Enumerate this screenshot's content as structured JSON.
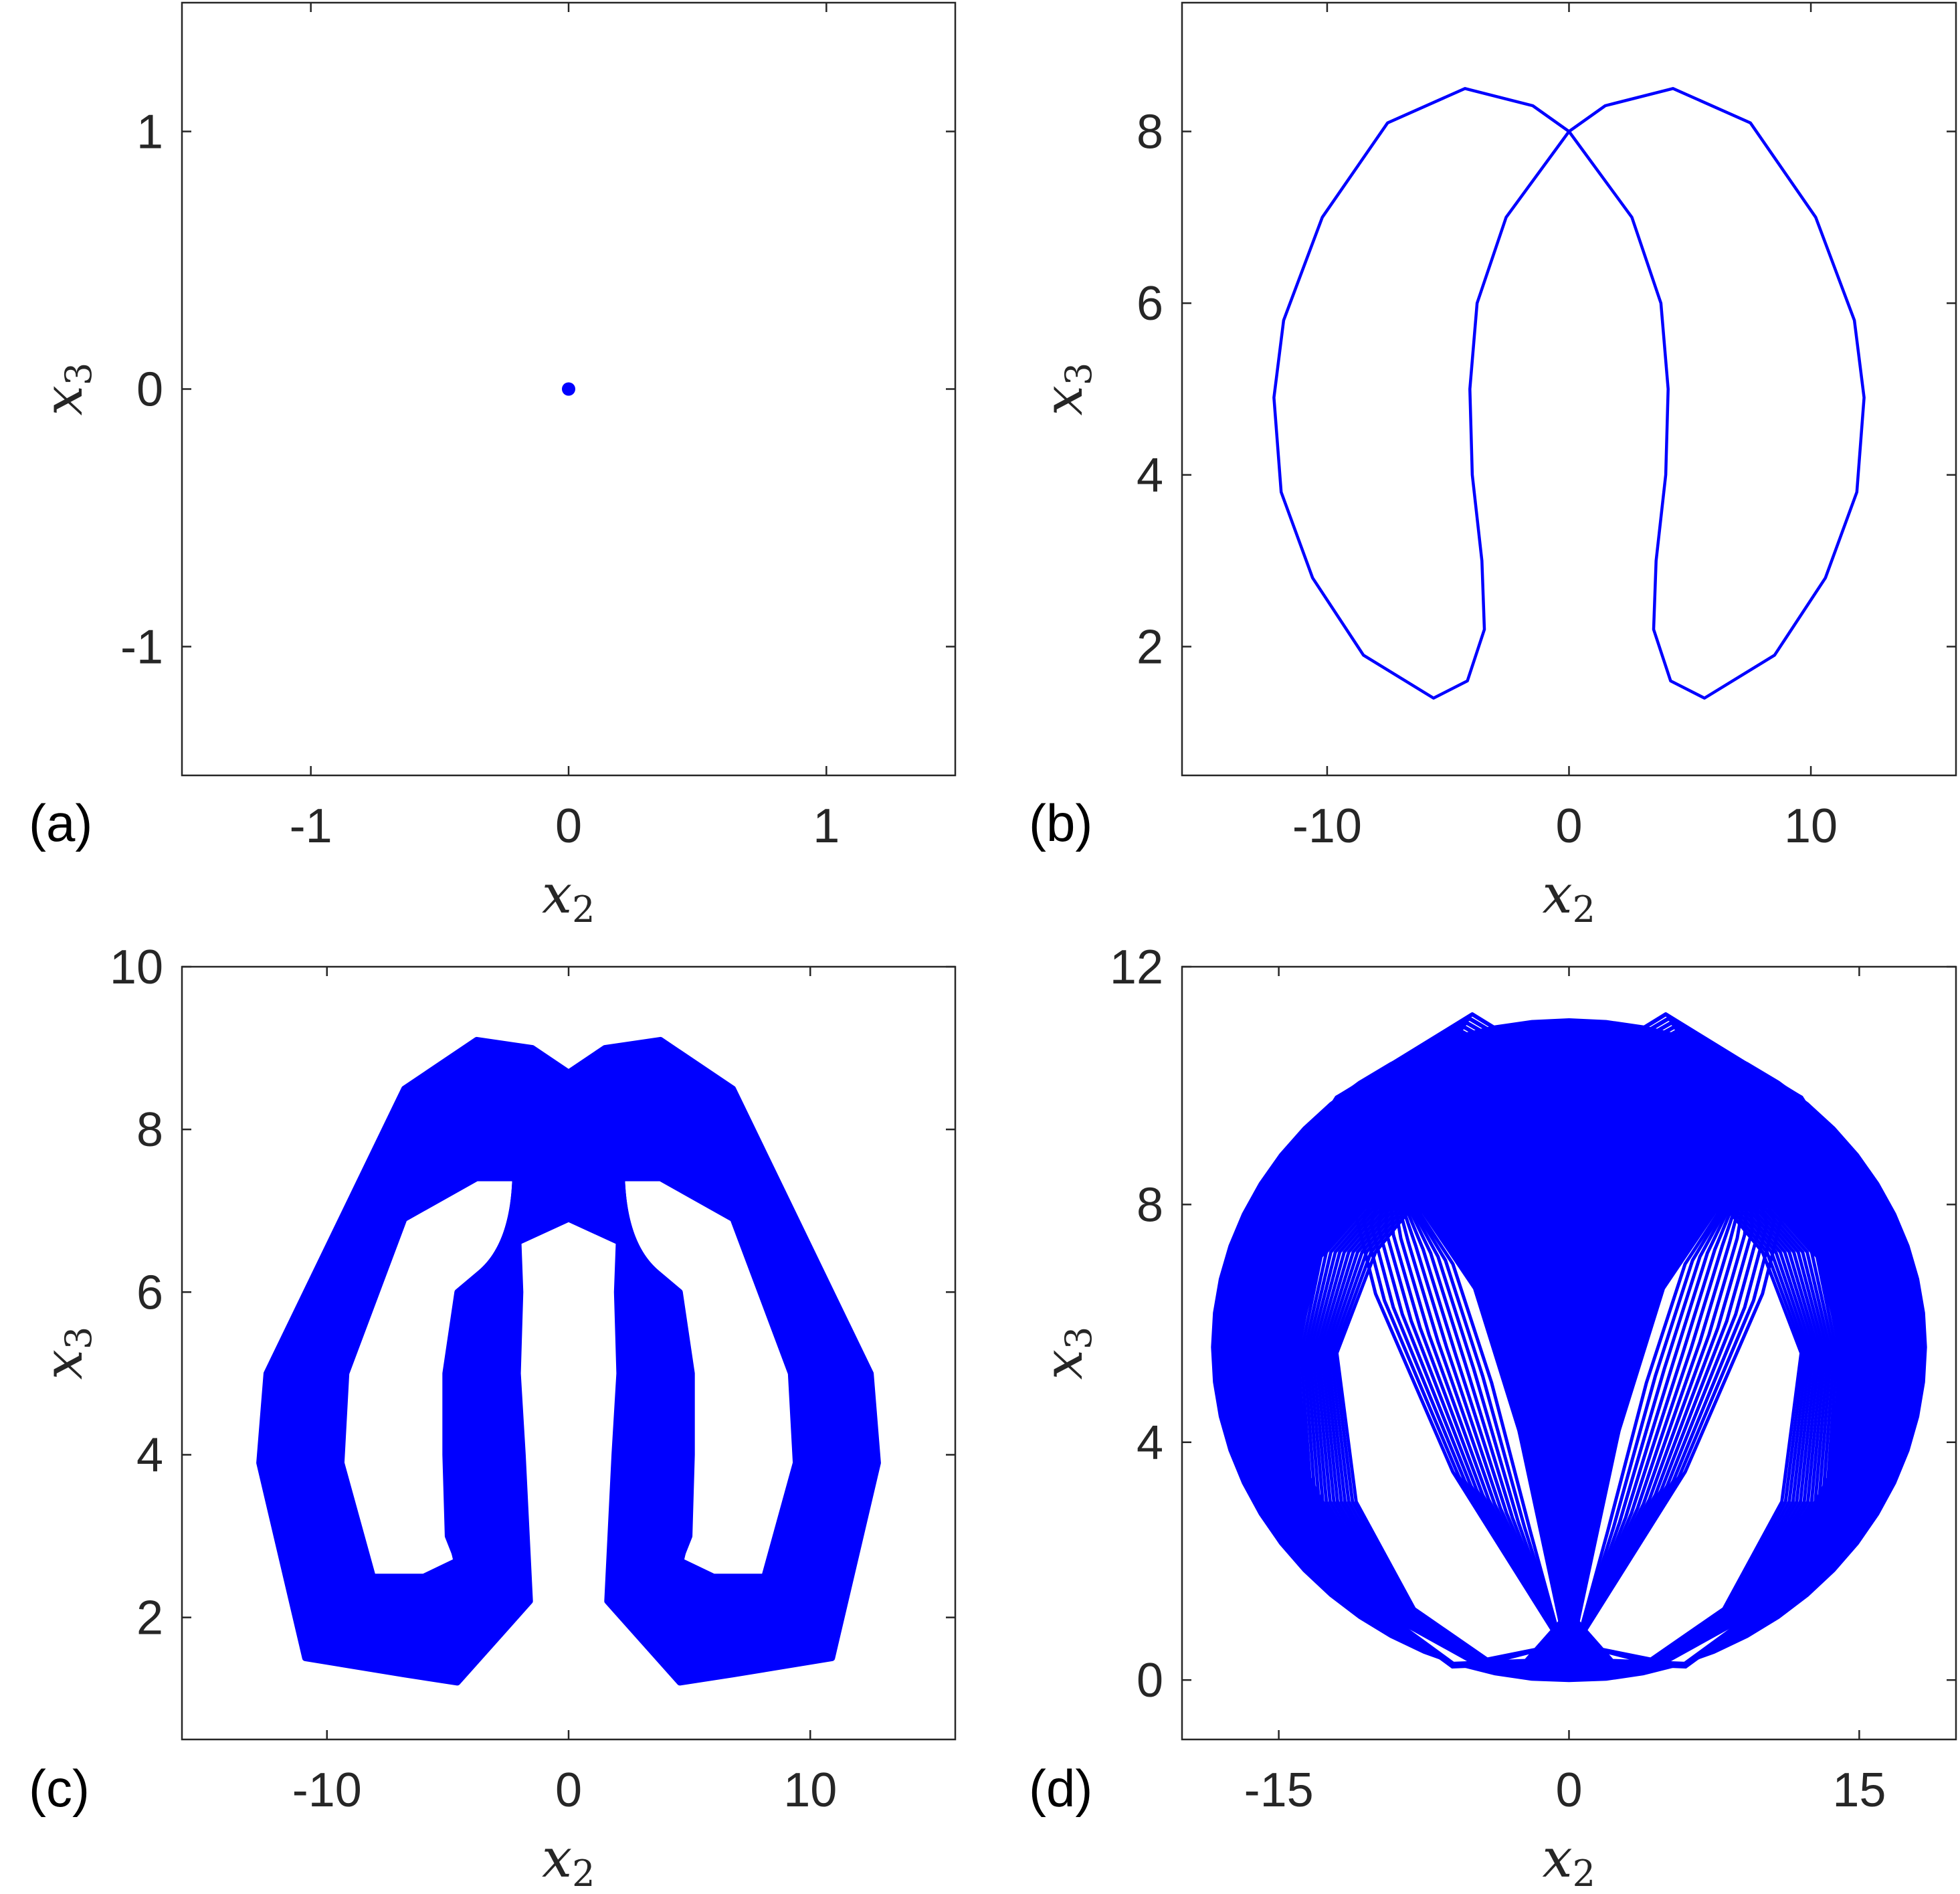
{
  "colors": {
    "trajectory": "#0000ff",
    "axes": "#262626"
  },
  "chart_data": [
    {
      "type": "line",
      "panel_label": "(a)",
      "xlabel": "x2",
      "ylabel": "x3",
      "xlim": [
        -1.5,
        1.5
      ],
      "ylim": [
        -1.5,
        1.5
      ],
      "xticks": [
        -1,
        0,
        1
      ],
      "xtick_labels": [
        "-1",
        "0",
        "1"
      ],
      "yticks": [
        -1,
        0,
        1
      ],
      "ytick_labels": [
        "-1",
        "0",
        "1"
      ],
      "grid": false,
      "series": [
        {
          "kind": "fixed-point",
          "x": [
            0
          ],
          "y": [
            0
          ]
        }
      ]
    },
    {
      "type": "line",
      "panel_label": "(b)",
      "xlabel": "x2",
      "ylabel": "x3",
      "xlim": [
        -16,
        16
      ],
      "ylim": [
        0.5,
        9.5
      ],
      "xticks": [
        -10,
        0,
        10
      ],
      "xtick_labels": [
        "-10",
        "0",
        "10"
      ],
      "yticks": [
        2,
        4,
        6,
        8
      ],
      "ytick_labels": [
        "2",
        "4",
        "6",
        "8"
      ],
      "grid": false,
      "series": [
        {
          "kind": "limit-cycle",
          "x_extent": [
            -12.3,
            12.3
          ],
          "y_extent": [
            1.4,
            8.5
          ],
          "crossing_x3": 8.0
        }
      ]
    },
    {
      "type": "line",
      "panel_label": "(c)",
      "xlabel": "x2",
      "ylabel": "x3",
      "xlim": [
        -16,
        16
      ],
      "ylim": [
        0.5,
        10
      ],
      "xticks": [
        -10,
        0,
        10
      ],
      "xtick_labels": [
        "-10",
        "0",
        "10"
      ],
      "yticks": [
        2,
        4,
        6,
        8,
        10
      ],
      "ytick_labels": [
        "2",
        "4",
        "6",
        "8",
        "10"
      ],
      "grid": false,
      "series": [
        {
          "kind": "quasi-periodic-band",
          "x_extent": [
            -13,
            13
          ],
          "y_extent": [
            1.1,
            9.1
          ],
          "crossing_x3": [
            6.9,
            8.7
          ]
        }
      ]
    },
    {
      "type": "line",
      "panel_label": "(d)",
      "xlabel": "x2",
      "ylabel": "x3",
      "xlim": [
        -20,
        20
      ],
      "ylim": [
        -1,
        12
      ],
      "xticks": [
        -15,
        0,
        15
      ],
      "xtick_labels": [
        "-15",
        "0",
        "15"
      ],
      "yticks": [
        0,
        4,
        8,
        12
      ],
      "ytick_labels": [
        "0",
        "4",
        "8",
        "12"
      ],
      "grid": false,
      "series": [
        {
          "kind": "chaotic-attractor",
          "x_extent": [
            -18.5,
            18.5
          ],
          "y_extent": [
            0,
            11.2
          ]
        }
      ]
    }
  ]
}
